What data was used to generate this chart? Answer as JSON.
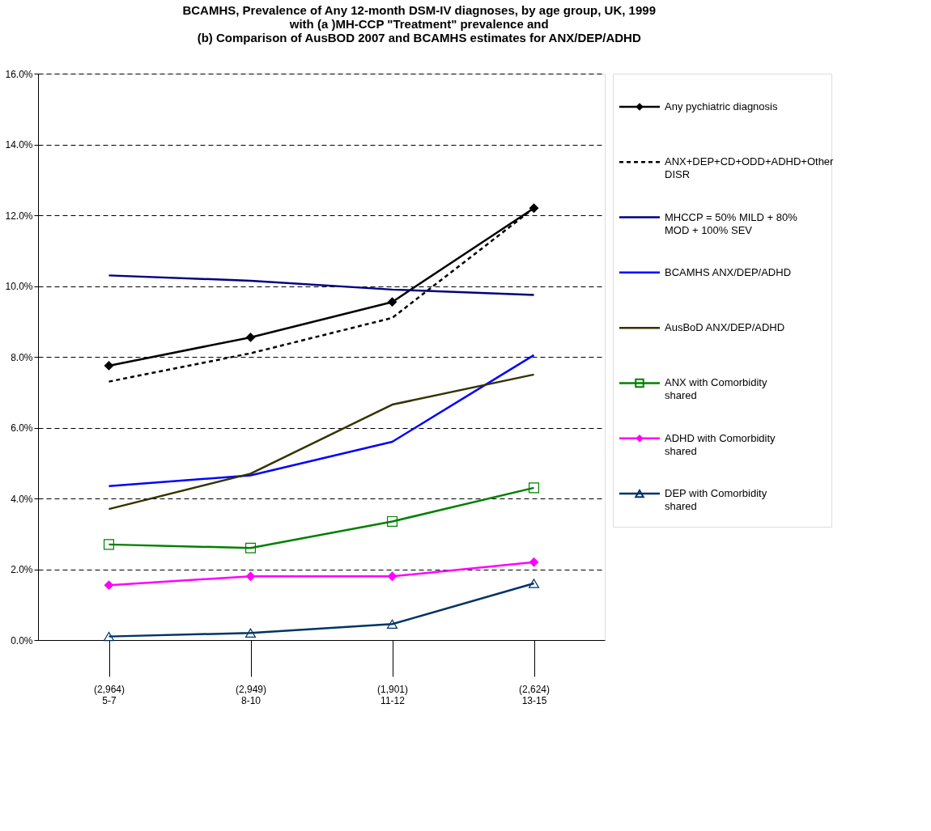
{
  "chart_data": {
    "type": "line",
    "title": [
      "BCAMHS, Prevalence of Any 12-month DSM-IV diagnoses, by age group, UK, 1999",
      "with (a )MH-CCP \"Treatment\" prevalence and",
      "(b) Comparison of AusBOD 2007 and BCAMHS estimates for ANX/DEP/ADHD"
    ],
    "categories": [
      "5-7",
      "8-10",
      "11-12",
      "13-15"
    ],
    "annotations": [
      "(2,964)",
      "(2,949)",
      "(1,901)",
      "(2,624)"
    ],
    "series": [
      {
        "name": "Any pychiatric diagnosis",
        "color": "#000000",
        "marker": "diamond",
        "line_style": "solid",
        "values": [
          7.75,
          8.55,
          9.55,
          12.2
        ]
      },
      {
        "name": "ANX+DEP+CD+ODD+ADHD+Other DISR",
        "color": "#000000",
        "marker": "none",
        "line_style": "dashed",
        "values": [
          7.3,
          8.1,
          9.1,
          12.2
        ]
      },
      {
        "name": "MHCCP = 50% MILD + 80% MOD + 100% SEV",
        "color": "#000080",
        "marker": "none",
        "line_style": "solid",
        "values": [
          10.3,
          10.15,
          9.9,
          9.75
        ]
      },
      {
        "name": "BCAMHS ANX/DEP/ADHD",
        "color": "#0000ff",
        "marker": "none",
        "line_style": "solid",
        "values": [
          4.35,
          4.65,
          5.6,
          8.05
        ]
      },
      {
        "name": "AusBoD ANX/DEP/ADHD",
        "color": "#333300",
        "marker": "none",
        "line_style": "solid",
        "values": [
          3.7,
          4.7,
          6.65,
          7.5
        ]
      },
      {
        "name": "ANX with Comorbidity shared",
        "color": "#008000",
        "marker": "square",
        "line_style": "solid",
        "values": [
          2.7,
          2.6,
          3.35,
          4.3
        ]
      },
      {
        "name": "ADHD with Comorbidity shared",
        "color": "#ff00ff",
        "marker": "diamond",
        "line_style": "solid",
        "values": [
          1.55,
          1.8,
          1.8,
          2.2
        ]
      },
      {
        "name": "DEP with Comorbidity shared",
        "color": "#003366",
        "marker": "triangle",
        "line_style": "solid",
        "values": [
          0.1,
          0.2,
          0.45,
          1.6
        ]
      }
    ],
    "ylim": [
      0,
      16
    ],
    "yticks": [
      {
        "value": 0,
        "label": "0.0%"
      },
      {
        "value": 2,
        "label": "2.0%"
      },
      {
        "value": 4,
        "label": "4.0%"
      },
      {
        "value": 6,
        "label": "6.0%"
      },
      {
        "value": 8,
        "label": "8.0%"
      },
      {
        "value": 10,
        "label": "10.0%"
      },
      {
        "value": 12,
        "label": "12.0%"
      },
      {
        "value": 14,
        "label": "14.0%"
      },
      {
        "value": 16,
        "label": "16.0%"
      }
    ],
    "grid": "y",
    "legend": "right"
  }
}
